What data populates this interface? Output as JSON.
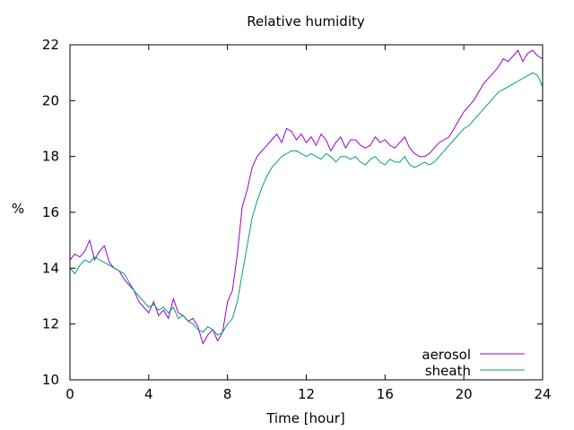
{
  "chart_data": {
    "type": "line",
    "title": "Relative humidity",
    "xlabel": "Time [hour]",
    "ylabel": "%",
    "xlim": [
      0,
      24
    ],
    "ylim": [
      10,
      22
    ],
    "xticks": [
      0,
      4,
      8,
      12,
      16,
      20,
      24
    ],
    "yticks": [
      10,
      12,
      14,
      16,
      18,
      20,
      22
    ],
    "xtick_labels": [
      "0",
      "4",
      "8",
      "12",
      "16",
      "20",
      "24"
    ],
    "ytick_labels": [
      "10",
      "12",
      "14",
      "16",
      "18",
      "20",
      "22"
    ],
    "grid": false,
    "legend": "bottom-right",
    "series": [
      {
        "name": "aerosol",
        "color": "#9400d3",
        "x": [
          0,
          0.25,
          0.5,
          0.75,
          1,
          1.25,
          1.5,
          1.75,
          2,
          2.25,
          2.5,
          2.75,
          3,
          3.25,
          3.5,
          3.75,
          4,
          4.25,
          4.5,
          4.75,
          5,
          5.25,
          5.5,
          5.75,
          6,
          6.25,
          6.5,
          6.75,
          7,
          7.25,
          7.5,
          7.75,
          8,
          8.25,
          8.5,
          8.75,
          9,
          9.25,
          9.5,
          9.75,
          10,
          10.25,
          10.5,
          10.75,
          11,
          11.25,
          11.5,
          11.75,
          12,
          12.25,
          12.5,
          12.75,
          13,
          13.25,
          13.5,
          13.75,
          14,
          14.25,
          14.5,
          14.75,
          15,
          15.25,
          15.5,
          15.75,
          16,
          16.25,
          16.5,
          16.75,
          17,
          17.25,
          17.5,
          17.75,
          18,
          18.25,
          18.5,
          18.75,
          19,
          19.25,
          19.5,
          19.75,
          20,
          20.25,
          20.5,
          20.75,
          21,
          21.25,
          21.5,
          21.75,
          22,
          22.25,
          22.5,
          22.75,
          23,
          23.25,
          23.5,
          23.75,
          24
        ],
        "values": [
          14.3,
          14.5,
          14.4,
          14.6,
          15.0,
          14.3,
          14.6,
          14.8,
          14.2,
          14.0,
          13.9,
          13.6,
          13.4,
          13.2,
          12.8,
          12.6,
          12.4,
          12.8,
          12.3,
          12.5,
          12.2,
          12.9,
          12.4,
          12.3,
          12.1,
          12.2,
          11.9,
          11.3,
          11.6,
          11.8,
          11.4,
          11.7,
          12.8,
          13.2,
          14.5,
          16.2,
          16.8,
          17.6,
          18.0,
          18.2,
          18.4,
          18.6,
          18.8,
          18.5,
          19.0,
          18.9,
          18.6,
          18.8,
          18.5,
          18.7,
          18.4,
          18.8,
          18.6,
          18.2,
          18.5,
          18.7,
          18.3,
          18.6,
          18.6,
          18.4,
          18.3,
          18.4,
          18.7,
          18.5,
          18.6,
          18.4,
          18.3,
          18.5,
          18.7,
          18.3,
          18.1,
          18.0,
          18.0,
          18.1,
          18.3,
          18.5,
          18.6,
          18.7,
          19.0,
          19.3,
          19.6,
          19.8,
          20.0,
          20.3,
          20.6,
          20.8,
          21.0,
          21.2,
          21.5,
          21.4,
          21.6,
          21.8,
          21.4,
          21.7,
          21.8,
          21.6,
          21.5
        ]
      },
      {
        "name": "sheath",
        "color": "#009e73",
        "x": [
          0,
          0.25,
          0.5,
          0.75,
          1,
          1.25,
          1.5,
          1.75,
          2,
          2.25,
          2.5,
          2.75,
          3,
          3.25,
          3.5,
          3.75,
          4,
          4.25,
          4.5,
          4.75,
          5,
          5.25,
          5.5,
          5.75,
          6,
          6.25,
          6.5,
          6.75,
          7,
          7.25,
          7.5,
          7.75,
          8,
          8.25,
          8.5,
          8.75,
          9,
          9.25,
          9.5,
          9.75,
          10,
          10.25,
          10.5,
          10.75,
          11,
          11.25,
          11.5,
          11.75,
          12,
          12.25,
          12.5,
          12.75,
          13,
          13.25,
          13.5,
          13.75,
          14,
          14.25,
          14.5,
          14.75,
          15,
          15.25,
          15.5,
          15.75,
          16,
          16.25,
          16.5,
          16.75,
          17,
          17.25,
          17.5,
          17.75,
          18,
          18.25,
          18.5,
          18.75,
          19,
          19.25,
          19.5,
          19.75,
          20,
          20.25,
          20.5,
          20.75,
          21,
          21.25,
          21.5,
          21.75,
          22,
          22.25,
          22.5,
          22.75,
          23,
          23.25,
          23.5,
          23.75,
          24
        ],
        "values": [
          14.0,
          13.8,
          14.1,
          14.3,
          14.2,
          14.4,
          14.3,
          14.2,
          14.1,
          14.0,
          13.9,
          13.8,
          13.5,
          13.2,
          13.0,
          12.8,
          12.6,
          12.7,
          12.5,
          12.6,
          12.4,
          12.6,
          12.2,
          12.3,
          12.1,
          12.0,
          11.8,
          11.7,
          11.9,
          11.8,
          11.6,
          11.7,
          12.0,
          12.2,
          12.8,
          13.8,
          14.8,
          15.8,
          16.4,
          16.9,
          17.3,
          17.6,
          17.8,
          18.0,
          18.1,
          18.2,
          18.2,
          18.1,
          18.0,
          18.1,
          18.0,
          17.9,
          18.1,
          18.0,
          17.8,
          18.0,
          18.0,
          17.9,
          18.0,
          17.8,
          17.7,
          17.9,
          18.0,
          17.8,
          17.7,
          17.9,
          17.8,
          17.8,
          18.0,
          17.7,
          17.6,
          17.7,
          17.8,
          17.7,
          17.8,
          18.0,
          18.2,
          18.4,
          18.6,
          18.8,
          19.0,
          19.1,
          19.3,
          19.5,
          19.7,
          19.9,
          20.1,
          20.3,
          20.4,
          20.5,
          20.6,
          20.7,
          20.8,
          20.9,
          21.0,
          20.9,
          20.5
        ]
      }
    ]
  }
}
